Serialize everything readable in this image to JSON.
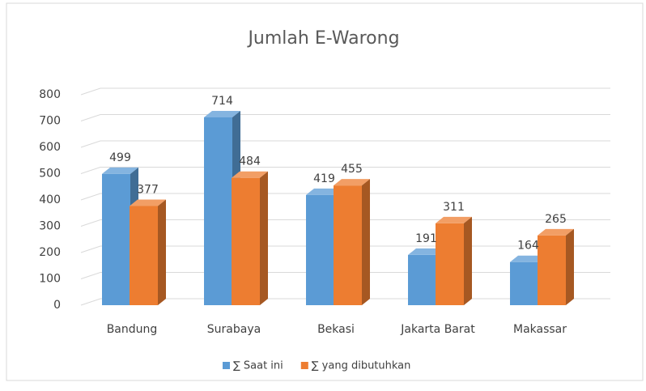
{
  "chart_data": {
    "type": "bar3d",
    "title": "Jumlah E-Warong",
    "categories": [
      "Bandung",
      "Surabaya",
      "Bekasi",
      "Jakarta Barat",
      "Makassar"
    ],
    "series": [
      {
        "name": "∑ Saat ini",
        "color": "#5b9bd5",
        "values": [
          499,
          714,
          419,
          191,
          164
        ]
      },
      {
        "name": "∑ yang dibutuhkan",
        "color": "#ed7d31",
        "values": [
          377,
          484,
          455,
          311,
          265
        ]
      }
    ],
    "ylim": [
      0,
      800
    ],
    "yticks": [
      0,
      100,
      200,
      300,
      400,
      500,
      600,
      700,
      800
    ],
    "grid": true,
    "legend": "bottom"
  }
}
